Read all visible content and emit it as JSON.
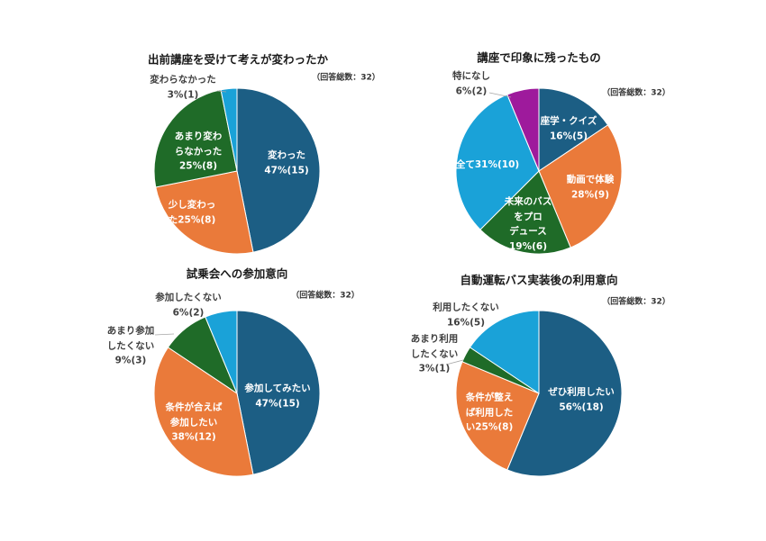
{
  "chart_data": [
    {
      "type": "pie",
      "title": "出前講座を受けて考えが変わったか",
      "subtitle": "（回答総数：32）",
      "slices": [
        {
          "label": "変わった\n47%(15)",
          "value": 15,
          "color": "#1c5e84"
        },
        {
          "label": "少し変わっ\nた25%(8)",
          "value": 8,
          "color": "#ea7a3a"
        },
        {
          "label": "あまり変わ\nらなかった\n25%(8)",
          "value": 8,
          "color": "#1f6b28"
        },
        {
          "label": "変わらなかった\n3%(1)",
          "value": 1,
          "color": "#1aa2d8"
        }
      ]
    },
    {
      "type": "pie",
      "title": "講座で印象に残ったもの",
      "subtitle": "（回答総数：32）",
      "slices": [
        {
          "label": "座学・クイズ\n16%(5)",
          "value": 5,
          "color": "#1c5e84"
        },
        {
          "label": "動画で体験\n28%(9)",
          "value": 9,
          "color": "#ea7a3a"
        },
        {
          "label": "未来のバス\nをプロ\nデュース\n19%(6)",
          "value": 6,
          "color": "#1f6b28"
        },
        {
          "label": "全て31%(10)",
          "value": 10,
          "color": "#1aa2d8"
        },
        {
          "label": "特になし\n6%(2)",
          "value": 2,
          "color": "#9e1a9c"
        }
      ]
    },
    {
      "type": "pie",
      "title": "試乗会への参加意向",
      "subtitle": "（回答総数：32）",
      "slices": [
        {
          "label": "参加してみたい\n47%(15)",
          "value": 15,
          "color": "#1c5e84"
        },
        {
          "label": "条件が合えば\n参加したい\n38%(12)",
          "value": 12,
          "color": "#ea7a3a"
        },
        {
          "label": "あまり参加\nしたくない\n9%(3)",
          "value": 3,
          "color": "#1f6b28"
        },
        {
          "label": "参加したくない\n6%(2)",
          "value": 2,
          "color": "#1aa2d8"
        }
      ]
    },
    {
      "type": "pie",
      "title": "自動運転バス実装後の利用意向",
      "subtitle": "（回答総数：32）",
      "slices": [
        {
          "label": "ぜひ利用したい\n56%(18)",
          "value": 18,
          "color": "#1c5e84"
        },
        {
          "label": "条件が整え\nば利用した\nい25%(8)",
          "value": 8,
          "color": "#ea7a3a"
        },
        {
          "label": "あまり利用\nしたくない\n3%(1)",
          "value": 1,
          "color": "#1f6b28"
        },
        {
          "label": "利用したくない\n16%(5)",
          "value": 5,
          "color": "#1aa2d8"
        }
      ]
    }
  ]
}
